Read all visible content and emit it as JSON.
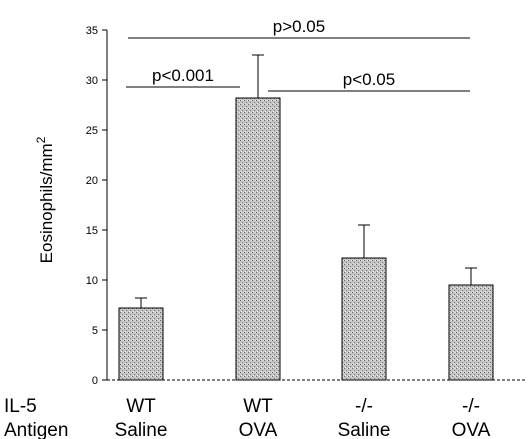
{
  "chart_data": {
    "type": "bar",
    "categories": [
      "WT Saline",
      "WT OVA",
      "-/- Saline",
      "-/- OVA"
    ],
    "rows": [
      {
        "label": "IL-5",
        "values": [
          "WT",
          "WT",
          "-/-",
          "-/-"
        ]
      },
      {
        "label": "Antigen",
        "values": [
          "Saline",
          "OVA",
          "Saline",
          "OVA"
        ]
      }
    ],
    "values": [
      7.2,
      28.2,
      12.2,
      9.5
    ],
    "errors": [
      1.0,
      4.3,
      3.3,
      1.7
    ],
    "ylabel": "Eosinophils/mm",
    "ylabel_sup": "2",
    "ylim": [
      0,
      35
    ],
    "yticks": [
      0,
      5,
      10,
      15,
      20,
      25,
      30,
      35
    ],
    "grid": false,
    "bar_color": "#b8b8b8",
    "annotations": [
      {
        "text": "p>0.05",
        "from": 0,
        "to": 3,
        "y": 34.2
      },
      {
        "text": "p<0.001",
        "from": 0,
        "to": 1,
        "y": 29.3
      },
      {
        "text": "p<0.05",
        "from": 1,
        "to": 3,
        "y": 28.9
      }
    ]
  }
}
